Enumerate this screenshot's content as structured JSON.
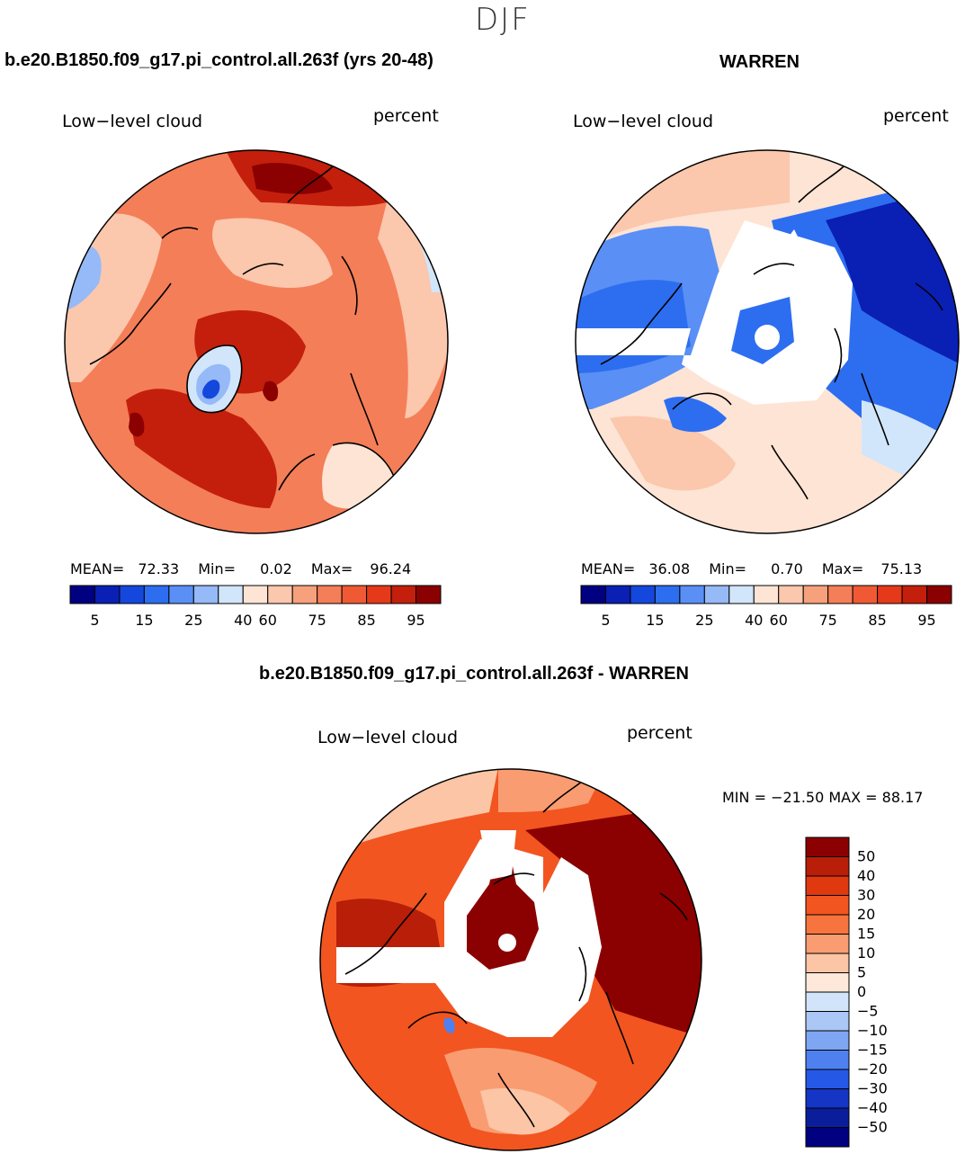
{
  "header": {
    "season": "DJF"
  },
  "panels": {
    "left": {
      "case_title": "b.e20.B1850.f09_g17.pi_control.all.263f (yrs 20-48)",
      "variable": "Low−level cloud",
      "units": "percent",
      "stats": {
        "mean_label": "MEAN=",
        "mean": "72.33",
        "min_label": "Min=",
        "min": "0.02",
        "max_label": "Max=",
        "max": "96.24"
      }
    },
    "right": {
      "case_title": "WARREN",
      "variable": "Low−level cloud",
      "units": "percent",
      "stats": {
        "mean_label": "MEAN=",
        "mean": "36.08",
        "min_label": "Min=",
        "min": "0.70",
        "max_label": "Max=",
        "max": "75.13"
      }
    },
    "diff": {
      "case_title": "b.e20.B1850.f09_g17.pi_control.all.263f - WARREN",
      "variable": "Low−level cloud",
      "units": "percent",
      "minmax": "MIN = −21.50 MAX =  88.17"
    }
  },
  "colorbar_abs": {
    "colors": [
      "#000080",
      "#0a1fb4",
      "#1447dc",
      "#2d6ef0",
      "#5a8ff5",
      "#96b9f7",
      "#d2e6fb",
      "#fde4d4",
      "#fbc7ad",
      "#f7a07c",
      "#f47e58",
      "#ef5a35",
      "#e43a1a",
      "#c31f0c",
      "#8b0000"
    ],
    "tick_labels": [
      "5",
      "15",
      "25",
      "40",
      "60",
      "75",
      "85",
      "95"
    ]
  },
  "colorbar_diff": {
    "colors": [
      "#8b0000",
      "#b81e08",
      "#e0380f",
      "#f25520",
      "#f7743e",
      "#f99c72",
      "#fbc5a6",
      "#fde8da",
      "#d2e4fa",
      "#aac7f5",
      "#7ea6f2",
      "#4f80f0",
      "#2558e6",
      "#1535c4",
      "#0a1e9c",
      "#000080"
    ],
    "tick_labels": [
      "50",
      "40",
      "30",
      "20",
      "15",
      "10",
      "5",
      "0",
      "−5",
      "−10",
      "−15",
      "−20",
      "−30",
      "−40",
      "−50"
    ]
  },
  "map_colors": {
    "left": {
      "base": "#f47e58",
      "dark": "#c31f0c",
      "darker": "#8b0000",
      "light": "#fbc7ad",
      "pale": "#fde4d4",
      "blue": "#96b9f7",
      "deep_blue": "#1447dc"
    },
    "right": {
      "base": "#fde4d4",
      "light": "#fbc7ad",
      "blue": "#5a8ff5",
      "blue2": "#2d6ef0",
      "deep": "#0a1fb4",
      "pale_blue": "#d2e6fb",
      "missing": "#ffffff"
    },
    "diff": {
      "base": "#f25520",
      "dark": "#b81e08",
      "darker": "#8b0000",
      "light": "#f99c72",
      "pale": "#fbc5a6",
      "missing": "#ffffff",
      "blue": "#4f80f0"
    }
  }
}
